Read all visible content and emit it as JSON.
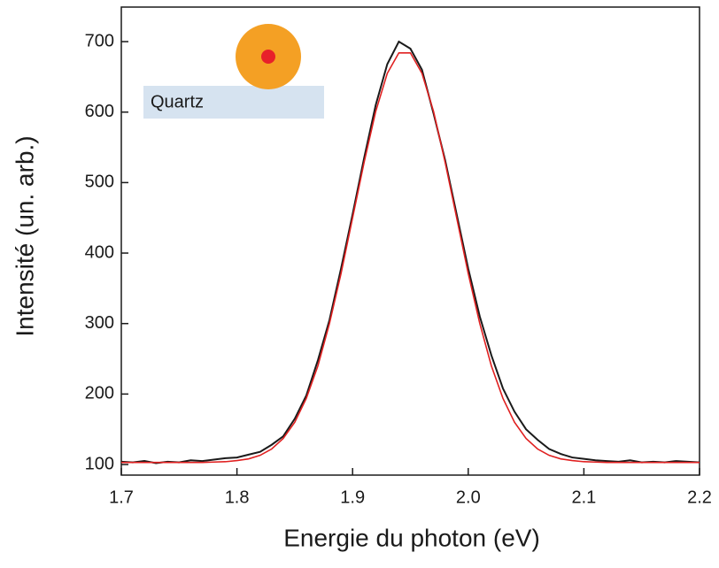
{
  "chart_data": {
    "type": "line",
    "xlabel": "Energie du photon (eV)",
    "ylabel": "Intensité (un. arb.)",
    "annotation": "Quartz",
    "x": [
      1.7,
      1.71,
      1.72,
      1.73,
      1.74,
      1.75,
      1.76,
      1.77,
      1.78,
      1.79,
      1.8,
      1.81,
      1.82,
      1.83,
      1.84,
      1.85,
      1.86,
      1.87,
      1.88,
      1.89,
      1.9,
      1.91,
      1.92,
      1.93,
      1.94,
      1.95,
      1.96,
      1.97,
      1.98,
      1.99,
      2.0,
      2.01,
      2.02,
      2.03,
      2.04,
      2.05,
      2.06,
      2.07,
      2.08,
      2.09,
      2.1,
      2.11,
      2.12,
      2.13,
      2.14,
      2.15,
      2.16,
      2.17,
      2.18,
      2.19,
      2.2
    ],
    "series": [
      {
        "color": "#1a1a1a",
        "values": [
          104,
          103,
          105,
          102,
          104,
          103,
          106,
          105,
          107,
          109,
          110,
          114,
          118,
          128,
          140,
          165,
          198,
          248,
          305,
          378,
          455,
          535,
          610,
          668,
          700,
          690,
          660,
          598,
          532,
          455,
          378,
          310,
          255,
          208,
          175,
          150,
          135,
          122,
          115,
          110,
          108,
          106,
          105,
          104,
          106,
          103,
          104,
          103,
          105,
          104,
          103
        ]
      },
      {
        "color": "#e02020",
        "values": [
          103,
          103,
          103,
          103,
          103,
          103,
          103,
          103,
          103.5,
          104,
          105.6,
          108,
          113,
          122,
          137,
          160,
          194,
          240,
          300,
          371,
          450,
          529,
          601,
          655,
          684,
          684,
          655,
          601,
          529,
          450,
          371,
          300,
          240,
          194,
          160,
          137,
          122,
          113,
          108,
          105.6,
          104,
          103.5,
          103,
          103,
          103,
          103,
          103,
          103,
          103,
          103,
          103
        ]
      }
    ],
    "xlim": [
      1.7,
      2.2
    ],
    "xticks": [
      1.7,
      1.8,
      1.9,
      {
        "value": 2.0,
        "label": "2.0"
      },
      2.1,
      2.2
    ],
    "ylim": [
      85,
      749
    ],
    "yticks": [
      100,
      200,
      300,
      400,
      500,
      600,
      700
    ]
  }
}
